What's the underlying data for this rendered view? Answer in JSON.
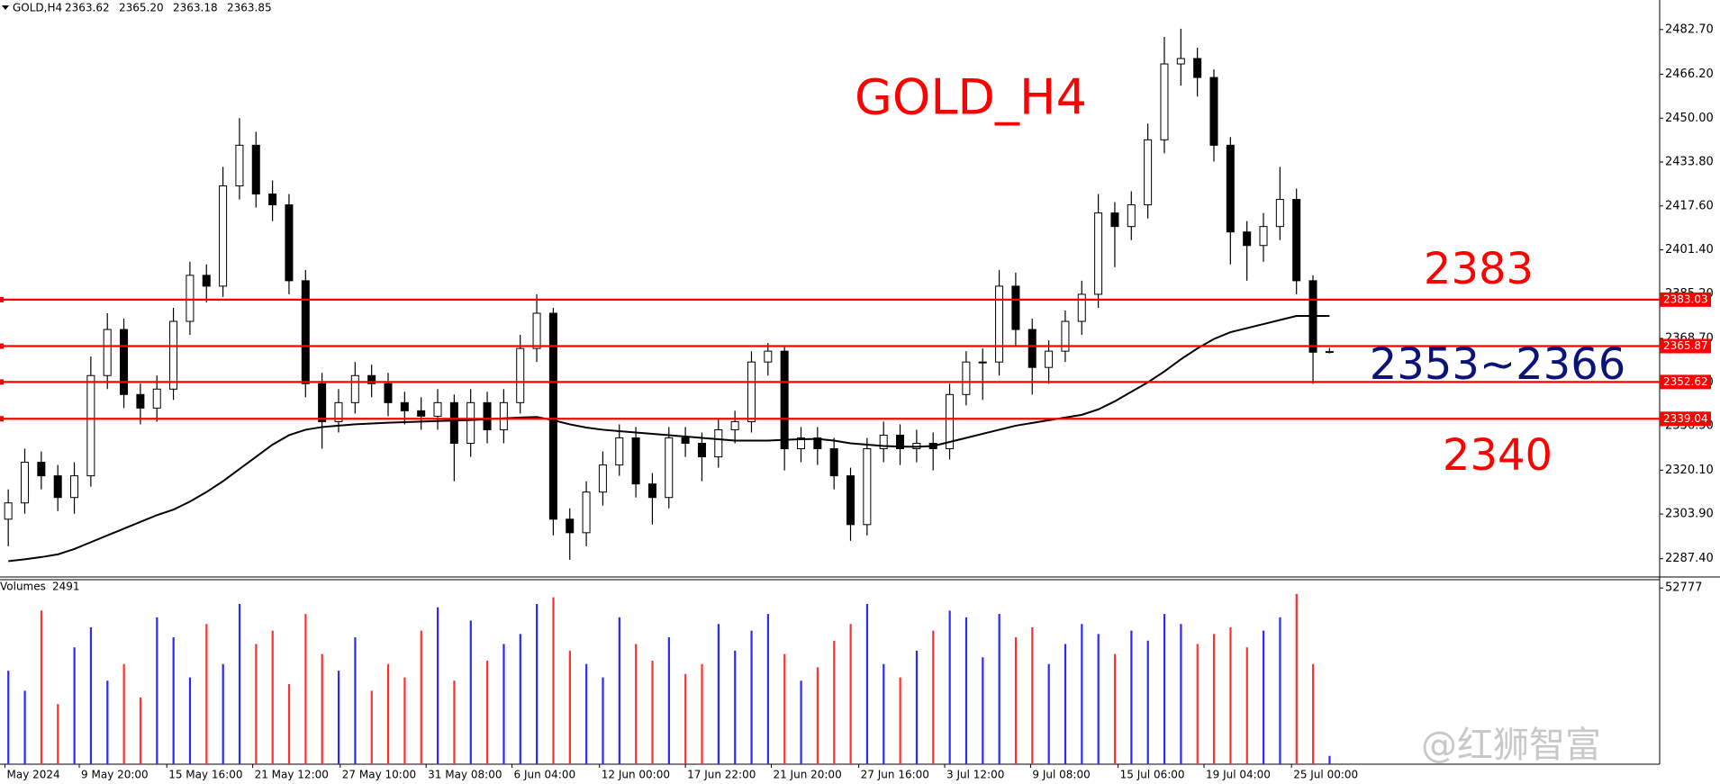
{
  "chart_data": {
    "type": "candlestick",
    "title": "GOLD,H4",
    "header_ohlc_labels": [
      "2363.62",
      "2365.20",
      "2363.18",
      "2363.85"
    ],
    "open": [
      2302,
      2308,
      2323,
      2318,
      2310,
      2318,
      2355,
      2372,
      2348,
      2343,
      2350,
      2375,
      2392,
      2388,
      2425,
      2440,
      2422,
      2418,
      2390,
      2352,
      2338,
      2345,
      2355,
      2352,
      2345,
      2342,
      2340,
      2345,
      2330,
      2345,
      2335,
      2345,
      2365,
      2378,
      2302,
      2297,
      2312,
      2322,
      2332,
      2315,
      2310,
      2332,
      2330,
      2325,
      2335,
      2338,
      2360,
      2364,
      2328,
      2332,
      2328,
      2318,
      2300,
      2328,
      2333,
      2328,
      2330,
      2328,
      2348,
      2360,
      2360,
      2388,
      2372,
      2358,
      2364,
      2375,
      2385,
      2415,
      2410,
      2418,
      2442,
      2470,
      2472,
      2465,
      2440,
      2408,
      2403,
      2410,
      2420,
      2390,
      2363.62
    ],
    "high": [
      2313,
      2328,
      2327,
      2322,
      2323,
      2362,
      2378,
      2376,
      2352,
      2355,
      2380,
      2397,
      2396,
      2432,
      2450,
      2445,
      2427,
      2422,
      2394,
      2356,
      2350,
      2360,
      2359,
      2356,
      2349,
      2347,
      2350,
      2348,
      2350,
      2349,
      2350,
      2370,
      2385,
      2380,
      2306,
      2316,
      2327,
      2337,
      2336,
      2319,
      2336,
      2336,
      2334,
      2339,
      2342,
      2364,
      2367,
      2366,
      2336,
      2336,
      2332,
      2321,
      2332,
      2338,
      2337,
      2335,
      2334,
      2352,
      2364,
      2365,
      2394,
      2393,
      2376,
      2368,
      2379,
      2390,
      2422,
      2419,
      2423,
      2448,
      2480,
      2483,
      2476,
      2468,
      2443,
      2412,
      2415,
      2432,
      2424,
      2392,
      2365.2
    ],
    "low": [
      2292,
      2304,
      2313,
      2305,
      2304,
      2314,
      2350,
      2343,
      2337,
      2338,
      2346,
      2370,
      2382,
      2384,
      2420,
      2417,
      2412,
      2385,
      2347,
      2328,
      2334,
      2341,
      2347,
      2340,
      2337,
      2335,
      2335,
      2316,
      2325,
      2330,
      2330,
      2341,
      2360,
      2296,
      2287,
      2292,
      2307,
      2318,
      2310,
      2300,
      2306,
      2325,
      2316,
      2321,
      2330,
      2334,
      2355,
      2320,
      2323,
      2322,
      2313,
      2294,
      2296,
      2323,
      2322,
      2323,
      2320,
      2324,
      2344,
      2346,
      2355,
      2366,
      2348,
      2352,
      2360,
      2370,
      2380,
      2395,
      2405,
      2413,
      2437,
      2462,
      2458,
      2434,
      2396,
      2390,
      2397,
      2405,
      2385,
      2352,
      2363.18
    ],
    "close": [
      2308,
      2323,
      2318,
      2310,
      2318,
      2355,
      2372,
      2348,
      2343,
      2350,
      2375,
      2392,
      2388,
      2425,
      2440,
      2422,
      2418,
      2390,
      2352,
      2338,
      2345,
      2355,
      2352,
      2345,
      2342,
      2340,
      2345,
      2330,
      2345,
      2335,
      2345,
      2365,
      2378,
      2302,
      2297,
      2312,
      2322,
      2332,
      2315,
      2310,
      2332,
      2330,
      2325,
      2335,
      2338,
      2360,
      2364,
      2328,
      2332,
      2328,
      2318,
      2300,
      2328,
      2333,
      2328,
      2330,
      2328,
      2348,
      2360,
      2360,
      2388,
      2372,
      2358,
      2364,
      2375,
      2385,
      2415,
      2410,
      2418,
      2442,
      2470,
      2472,
      2465,
      2440,
      2408,
      2403,
      2410,
      2420,
      2390,
      2363.62,
      2363.85
    ],
    "colors": {
      "up_body": "#ffffff",
      "down_body": "#000000",
      "wick": "#000000"
    },
    "ma": {
      "color": "#000000",
      "values": [
        2286.5,
        2287.2,
        2288,
        2289,
        2291,
        2293.5,
        2296,
        2298.5,
        2301,
        2303.5,
        2305.5,
        2308.5,
        2312,
        2316,
        2320.5,
        2325,
        2329.5,
        2333,
        2335,
        2336,
        2336.5,
        2337,
        2337.3,
        2337.6,
        2337.8,
        2338,
        2338.2,
        2338.4,
        2338.6,
        2338.9,
        2339.2,
        2339.5,
        2339.7,
        2338.5,
        2337,
        2335.8,
        2335,
        2334.5,
        2334,
        2333.5,
        2333,
        2332.5,
        2332,
        2331.5,
        2331,
        2331,
        2331,
        2331.3,
        2331.5,
        2331.6,
        2331,
        2330,
        2329.5,
        2329,
        2328.8,
        2328.7,
        2329,
        2330.5,
        2332,
        2333.5,
        2335,
        2336.5,
        2337.5,
        2338.5,
        2339.5,
        2340.5,
        2342.5,
        2345.5,
        2349,
        2352.5,
        2356.5,
        2361,
        2365,
        2368.5,
        2371,
        2372.5,
        2374,
        2375.5,
        2377,
        2377,
        2377
      ]
    },
    "ylim": [
      2281,
      2493.6
    ],
    "yticks": [
      {
        "value": 2482.7,
        "label": "2482.70"
      },
      {
        "value": 2466.2,
        "label": "2466.20"
      },
      {
        "value": 2450,
        "label": "2450.00"
      },
      {
        "value": 2433.8,
        "label": "2433.80"
      },
      {
        "value": 2417.6,
        "label": "2417.60"
      },
      {
        "value": 2401.4,
        "label": "2401.40"
      },
      {
        "value": 2385.2,
        "label": "2385.20"
      },
      {
        "value": 2368.7,
        "label": "2368.70"
      },
      {
        "value": 2352.4,
        "label": "2352.40"
      },
      {
        "value": 2336.5,
        "label": "2336.50"
      },
      {
        "value": 2320.1,
        "label": "2320.10"
      },
      {
        "value": 2303.9,
        "label": "2303.90"
      },
      {
        "value": 2287.4,
        "label": "2287.40"
      }
    ],
    "xticks": [
      {
        "value": 0.3,
        "label": "May 2024"
      },
      {
        "value": 4.8,
        "label": "9 May 20:00"
      },
      {
        "value": 10.1,
        "label": "15 May 16:00"
      },
      {
        "value": 15.3,
        "label": "21 May 12:00"
      },
      {
        "value": 20.6,
        "label": "27 May 10:00"
      },
      {
        "value": 25.8,
        "label": "31 May 08:00"
      },
      {
        "value": 31.0,
        "label": "6 Jun 04:00"
      },
      {
        "value": 36.3,
        "label": "12 Jun 00:00"
      },
      {
        "value": 41.5,
        "label": "17 Jun 22:00"
      },
      {
        "value": 46.7,
        "label": "21 Jun 20:00"
      },
      {
        "value": 52.0,
        "label": "27 Jun 16:00"
      },
      {
        "value": 57.2,
        "label": "3 Jul 12:00"
      },
      {
        "value": 62.4,
        "label": "9 Jul 08:00"
      },
      {
        "value": 67.7,
        "label": "15 Jul 06:00"
      },
      {
        "value": 72.9,
        "label": "19 Jul 04:00"
      },
      {
        "value": 78.2,
        "label": "25 Jul 00:00"
      }
    ],
    "levels": [
      {
        "value": 2383.03,
        "label": "2383.03"
      },
      {
        "value": 2365.87,
        "label": "2365.87"
      },
      {
        "value": 2352.62,
        "label": "2352.62"
      },
      {
        "value": 2339.04,
        "label": "2339.04"
      }
    ],
    "level_color": "#ff0000",
    "annotations": [
      {
        "text": "GOLD_H4",
        "color": "#ff0000"
      },
      {
        "text": "2383",
        "color": "#ff0000"
      },
      {
        "text": "2353~2366",
        "color": "#0a1478"
      },
      {
        "text": "2340",
        "color": "#ff0000"
      }
    ],
    "volume": {
      "title": "Volumes",
      "up_color": "#2a2aff",
      "down_color": "#ff3030",
      "ylim": [
        0,
        55000
      ],
      "yticks": [
        52777
      ],
      "values": [
        28000,
        22000,
        46000,
        18000,
        35000,
        41000,
        25000,
        30000,
        20000,
        44000,
        38000,
        26000,
        42000,
        30000,
        48000,
        36000,
        40000,
        24000,
        45000,
        33000,
        28000,
        38000,
        22000,
        30000,
        26000,
        40000,
        47000,
        25000,
        43000,
        31000,
        36000,
        39000,
        48000,
        50000,
        34000,
        30000,
        26000,
        44000,
        36000,
        31000,
        38000,
        27000,
        30000,
        42000,
        34000,
        40000,
        45000,
        33000,
        25000,
        29000,
        37000,
        42000,
        48000,
        30000,
        26000,
        34000,
        40000,
        46000,
        44000,
        32000,
        45000,
        38000,
        41000,
        30000,
        36000,
        42000,
        39000,
        33000,
        40000,
        37000,
        45000,
        42000,
        36000,
        39000,
        41000,
        35000,
        40000,
        44000,
        51000,
        30000,
        2491
      ]
    },
    "watermark": "@红狮智富"
  }
}
